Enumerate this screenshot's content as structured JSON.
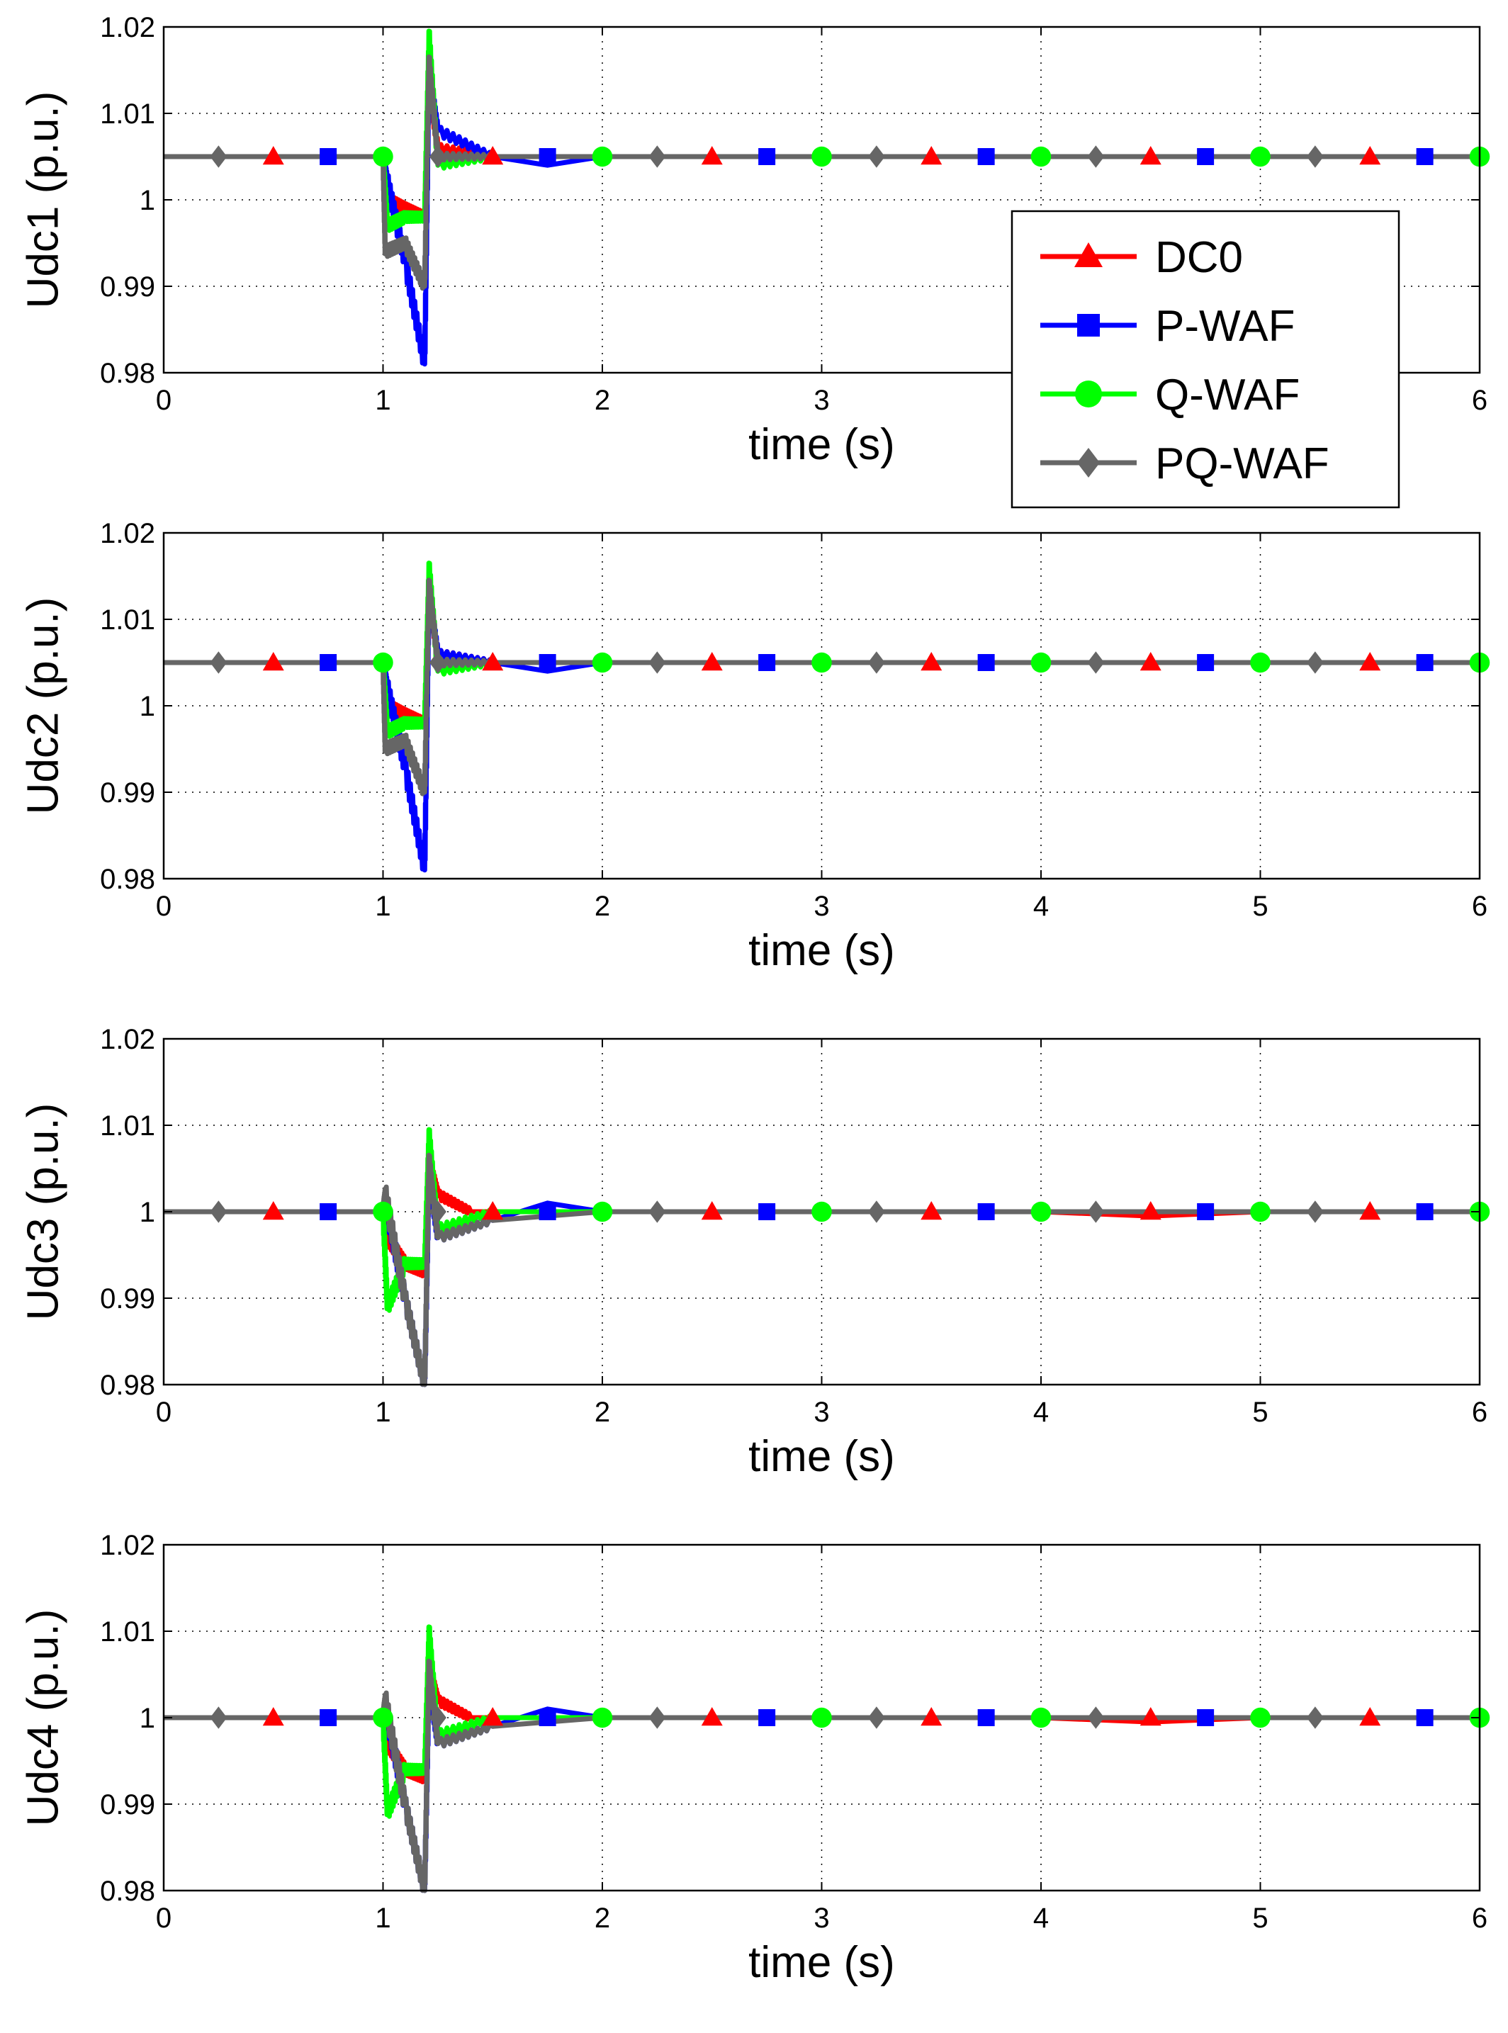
{
  "chart_data": [
    {
      "type": "line",
      "ylabel": "Udc1 (p.u.)",
      "xlabel": "time (s)",
      "xlim": [
        0,
        6
      ],
      "ylim": [
        0.98,
        1.02
      ],
      "xticks": [
        "0",
        "1",
        "2",
        "3",
        "4",
        "5",
        "6"
      ],
      "yticks": [
        "0.98",
        "0.99",
        "1",
        "1.01",
        "1.02"
      ],
      "grid": true,
      "steady": 1.005,
      "series": [
        {
          "name": "DC0",
          "x": [
            0,
            1,
            1.02,
            1.1,
            1.19,
            1.21,
            1.25,
            1.5,
            2,
            3,
            4,
            5,
            6
          ],
          "y": [
            1.005,
            1.005,
            1.0,
            0.999,
            0.998,
            1.013,
            1.006,
            1.005,
            1.005,
            1.005,
            1.005,
            1.005,
            1.005
          ]
        },
        {
          "name": "P-WAF",
          "x": [
            0,
            1,
            1.02,
            1.1,
            1.19,
            1.21,
            1.25,
            1.5,
            1.75,
            2,
            3,
            4,
            5,
            6
          ],
          "y": [
            1.005,
            1.005,
            1.002,
            0.993,
            0.981,
            1.015,
            1.008,
            1.005,
            1.004,
            1.005,
            1.005,
            1.005,
            1.005,
            1.005
          ]
        },
        {
          "name": "Q-WAF",
          "x": [
            0,
            1,
            1.02,
            1.1,
            1.19,
            1.21,
            1.25,
            1.5,
            2,
            3,
            4,
            5,
            6
          ],
          "y": [
            1.005,
            1.005,
            0.997,
            0.998,
            0.998,
            1.019,
            1.004,
            1.005,
            1.005,
            1.005,
            1.005,
            1.005,
            1.005
          ]
        },
        {
          "name": "PQ-WAF",
          "x": [
            0,
            1,
            1.01,
            1.1,
            1.19,
            1.21,
            1.25,
            1.5,
            2,
            3,
            4,
            5,
            6
          ],
          "y": [
            1.005,
            1.005,
            0.994,
            0.995,
            0.99,
            1.016,
            1.005,
            1.005,
            1.005,
            1.005,
            1.005,
            1.005,
            1.005
          ]
        }
      ]
    },
    {
      "type": "line",
      "ylabel": "Udc2 (p.u.)",
      "xlabel": "time (s)",
      "xlim": [
        0,
        6
      ],
      "ylim": [
        0.98,
        1.02
      ],
      "xticks": [
        "0",
        "1",
        "2",
        "3",
        "4",
        "5",
        "6"
      ],
      "yticks": [
        "0.98",
        "0.99",
        "1",
        "1.01",
        "1.02"
      ],
      "grid": true,
      "steady": 1.005,
      "series": [
        {
          "name": "DC0",
          "x": [
            0,
            1,
            1.02,
            1.1,
            1.19,
            1.21,
            1.25,
            1.5,
            2,
            3,
            4,
            5,
            6
          ],
          "y": [
            1.005,
            1.005,
            1.0,
            0.999,
            0.998,
            1.012,
            1.006,
            1.005,
            1.005,
            1.005,
            1.005,
            1.005,
            1.005
          ]
        },
        {
          "name": "P-WAF",
          "x": [
            0,
            1,
            1.02,
            1.1,
            1.19,
            1.21,
            1.25,
            1.5,
            1.75,
            2,
            3,
            4,
            5,
            6
          ],
          "y": [
            1.005,
            1.005,
            1.002,
            0.993,
            0.981,
            1.013,
            1.006,
            1.005,
            1.004,
            1.005,
            1.005,
            1.005,
            1.005,
            1.005
          ]
        },
        {
          "name": "Q-WAF",
          "x": [
            0,
            1,
            1.02,
            1.1,
            1.19,
            1.21,
            1.25,
            1.5,
            2,
            3,
            4,
            5,
            6
          ],
          "y": [
            1.005,
            1.005,
            0.997,
            0.998,
            0.998,
            1.016,
            1.004,
            1.005,
            1.005,
            1.005,
            1.005,
            1.005,
            1.005
          ]
        },
        {
          "name": "PQ-WAF",
          "x": [
            0,
            1,
            1.01,
            1.1,
            1.19,
            1.21,
            1.25,
            1.5,
            2,
            3,
            4,
            5,
            6
          ],
          "y": [
            1.005,
            1.005,
            0.995,
            0.996,
            0.99,
            1.014,
            1.005,
            1.005,
            1.005,
            1.005,
            1.005,
            1.005,
            1.005
          ]
        }
      ]
    },
    {
      "type": "line",
      "ylabel": "Udc3 (p.u.)",
      "xlabel": "time (s)",
      "xlim": [
        0,
        6
      ],
      "ylim": [
        0.98,
        1.02
      ],
      "xticks": [
        "0",
        "1",
        "2",
        "3",
        "4",
        "5",
        "6"
      ],
      "yticks": [
        "0.98",
        "0.99",
        "1",
        "1.01",
        "1.02"
      ],
      "grid": true,
      "steady": 1.0,
      "series": [
        {
          "name": "DC0",
          "x": [
            0,
            1,
            1.02,
            1.1,
            1.19,
            1.21,
            1.25,
            1.4,
            2,
            3,
            4,
            4.5,
            5,
            6
          ],
          "y": [
            1.0,
            1.0,
            0.997,
            0.994,
            0.993,
            1.006,
            1.002,
            1.0,
            1.0,
            1.0,
            1.0,
            0.9995,
            1.0,
            1.0
          ]
        },
        {
          "name": "P-WAF",
          "x": [
            0,
            1,
            1.02,
            1.1,
            1.19,
            1.21,
            1.25,
            1.5,
            1.75,
            2,
            3,
            4,
            5,
            6
          ],
          "y": [
            1.0,
            1.0,
            1.0,
            0.99,
            0.98,
            1.004,
            0.997,
            0.999,
            1.001,
            1.0,
            1.0,
            1.0,
            1.0,
            1.0
          ]
        },
        {
          "name": "Q-WAF",
          "x": [
            0,
            1,
            1.02,
            1.1,
            1.19,
            1.21,
            1.25,
            1.5,
            2,
            3,
            4,
            5,
            6
          ],
          "y": [
            1.0,
            1.0,
            0.989,
            0.994,
            0.994,
            1.009,
            0.998,
            1.0,
            1.0,
            1.0,
            1.0,
            1.0,
            1.0
          ]
        },
        {
          "name": "PQ-WAF",
          "x": [
            0,
            1,
            1.01,
            1.1,
            1.19,
            1.21,
            1.25,
            1.5,
            2,
            3,
            4,
            5,
            6
          ],
          "y": [
            1.0,
            1.0,
            1.002,
            0.99,
            0.98,
            1.006,
            0.997,
            0.999,
            1.0,
            1.0,
            1.0,
            1.0,
            1.0
          ]
        }
      ]
    },
    {
      "type": "line",
      "ylabel": "Udc4 (p.u.)",
      "xlabel": "time (s)",
      "xlim": [
        0,
        6
      ],
      "ylim": [
        0.98,
        1.02
      ],
      "xticks": [
        "0",
        "1",
        "2",
        "3",
        "4",
        "5",
        "6"
      ],
      "yticks": [
        "0.98",
        "0.99",
        "1",
        "1.01",
        "1.02"
      ],
      "grid": true,
      "steady": 1.0,
      "series": [
        {
          "name": "DC0",
          "x": [
            0,
            1,
            1.02,
            1.1,
            1.19,
            1.21,
            1.25,
            1.4,
            2,
            3,
            4,
            4.5,
            5,
            6
          ],
          "y": [
            1.0,
            1.0,
            0.997,
            0.994,
            0.993,
            1.006,
            1.002,
            1.0,
            1.0,
            1.0,
            1.0,
            0.9995,
            1.0,
            1.0
          ]
        },
        {
          "name": "P-WAF",
          "x": [
            0,
            1,
            1.02,
            1.1,
            1.19,
            1.21,
            1.25,
            1.5,
            1.75,
            2,
            3,
            4,
            5,
            6
          ],
          "y": [
            1.0,
            1.0,
            1.0,
            0.99,
            0.98,
            1.004,
            0.997,
            0.999,
            1.001,
            1.0,
            1.0,
            1.0,
            1.0,
            1.0
          ]
        },
        {
          "name": "Q-WAF",
          "x": [
            0,
            1,
            1.02,
            1.1,
            1.19,
            1.21,
            1.25,
            1.5,
            2,
            3,
            4,
            5,
            6
          ],
          "y": [
            1.0,
            1.0,
            0.989,
            0.994,
            0.994,
            1.01,
            0.998,
            1.0,
            1.0,
            1.0,
            1.0,
            1.0,
            1.0
          ]
        },
        {
          "name": "PQ-WAF",
          "x": [
            0,
            1,
            1.01,
            1.1,
            1.19,
            1.21,
            1.25,
            1.5,
            2,
            3,
            4,
            5,
            6
          ],
          "y": [
            1.0,
            1.0,
            1.002,
            0.99,
            0.98,
            1.006,
            0.997,
            0.999,
            1.0,
            1.0,
            1.0,
            1.0,
            1.0
          ]
        }
      ]
    }
  ],
  "legend": {
    "placement": "right, inside top panel",
    "entries": [
      {
        "label": "DC0",
        "color": "#ff0000",
        "marker": "triangle"
      },
      {
        "label": "P-WAF",
        "color": "#0000ff",
        "marker": "square"
      },
      {
        "label": "Q-WAF",
        "color": "#00ff00",
        "marker": "circle"
      },
      {
        "label": "PQ-WAF",
        "color": "#666666",
        "marker": "diamond"
      }
    ]
  },
  "markers": {
    "DC0": {
      "x": [
        0.5,
        1.5,
        2.5,
        3.5,
        4.5,
        5.5
      ]
    },
    "P-WAF": {
      "x": [
        0.75,
        1.75,
        2.75,
        3.75,
        4.75,
        5.75
      ]
    },
    "Q-WAF": {
      "x": [
        1,
        2,
        3,
        4,
        5,
        6
      ]
    },
    "PQ-WAF": {
      "x": [
        0.25,
        1.25,
        2.25,
        3.25,
        4.25,
        5.25
      ]
    }
  }
}
